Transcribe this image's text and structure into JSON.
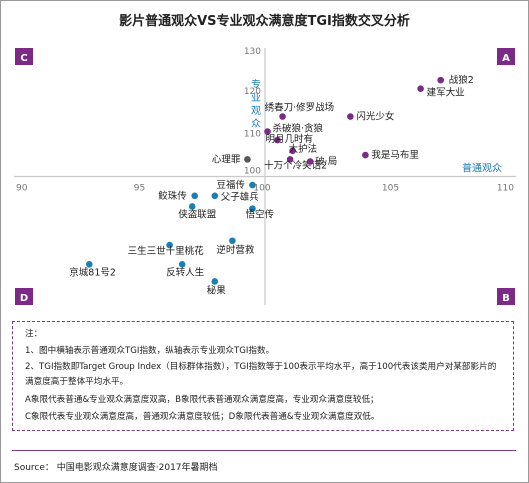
{
  "title": "影片普通观众VS专业观众满意度TGI指数交叉分析",
  "chart_data": {
    "type": "scatter",
    "xlim": [
      90,
      110
    ],
    "ylim": [
      70,
      130
    ],
    "x_center": 100,
    "y_center": 100,
    "x_ticks": [
      90,
      95,
      105,
      110
    ],
    "y_ticks": [
      110,
      120,
      130
    ],
    "x_center_tick": "100",
    "y_center_tick": "100",
    "xlabel": "普通观众",
    "ylabel": "专业观众",
    "quadrants": {
      "A": "A",
      "B": "B",
      "C": "C",
      "D": "D"
    },
    "grid": false,
    "points": [
      {
        "name": "战狼2",
        "x": 107.0,
        "y": 122.5,
        "color": "#7b2a86"
      },
      {
        "name": "建军大业",
        "x": 106.2,
        "y": 120.5,
        "color": "#7b2a86"
      },
      {
        "name": "绣春刀·修罗战场",
        "x": 100.7,
        "y": 114.0,
        "color": "#7b2a86"
      },
      {
        "name": "闪光少女",
        "x": 103.4,
        "y": 114.0,
        "color": "#7b2a86"
      },
      {
        "name": "杀破狼·贪狼",
        "x": 100.1,
        "y": 110.5,
        "color": "#7b2a86"
      },
      {
        "name": "明月几时有",
        "x": 100.5,
        "y": 108.5,
        "color": "#7b2a86"
      },
      {
        "name": "大护法",
        "x": 101.1,
        "y": 106.0,
        "color": "#7b2a86"
      },
      {
        "name": "我是马布里",
        "x": 104.0,
        "y": 105.0,
        "color": "#7b2a86"
      },
      {
        "name": "十万个冷笑话2",
        "x": 101.0,
        "y": 104.0,
        "color": "#7b2a86"
      },
      {
        "name": "破·局",
        "x": 101.8,
        "y": 103.5,
        "color": "#7b2a86"
      },
      {
        "name": "心理罪",
        "x": 99.3,
        "y": 104.0,
        "color": "#555555"
      },
      {
        "name": "豆福传",
        "x": 99.5,
        "y": 98.0,
        "color": "#1a7fb4"
      },
      {
        "name": "鲛珠传",
        "x": 97.2,
        "y": 95.5,
        "color": "#1a7fb4"
      },
      {
        "name": "父子雄兵",
        "x": 98.0,
        "y": 95.5,
        "color": "#1a7fb4"
      },
      {
        "name": "侠盗联盟",
        "x": 97.1,
        "y": 93.0,
        "color": "#1a7fb4"
      },
      {
        "name": "悟空传",
        "x": 99.5,
        "y": 92.5,
        "color": "#1a7fb4"
      },
      {
        "name": "逆时营救",
        "x": 98.7,
        "y": 85.0,
        "color": "#1a7fb4"
      },
      {
        "name": "三生三世十里桃花",
        "x": 96.2,
        "y": 84.0,
        "color": "#1a7fb4"
      },
      {
        "name": "京城81号2",
        "x": 93.0,
        "y": 79.5,
        "color": "#1a7fb4"
      },
      {
        "name": "反转人生",
        "x": 96.7,
        "y": 79.5,
        "color": "#1a7fb4"
      },
      {
        "name": "秘果",
        "x": 98.0,
        "y": 75.5,
        "color": "#1a7fb4"
      }
    ]
  },
  "notes": {
    "heading": "注：",
    "line1": "1、图中横轴表示普通观众TGI指数，纵轴表示专业观众TGI指数。",
    "line2": "2、TGI指数即Target Group Index（目标群体指数），TGI指数等于100表示平均水平，高于100代表该类用户对某部影片的满意度高于整体平均水平。",
    "line3": "A象限代表普通&专业观众满意度双高，B象限代表普通观众满意度高，专业观众满意度较低；",
    "line4": "C象限代表专业观众满意度高，普通观众满意度较低；D象限代表普通&专业观众满意度双低。"
  },
  "source": "Source：  中国电影观众满意度调查·2017年暑期档",
  "colors": {
    "quadrant_box": "#7b2a86",
    "axis_label": "#1a7fb4",
    "axis_line": "#c8c8c8"
  }
}
